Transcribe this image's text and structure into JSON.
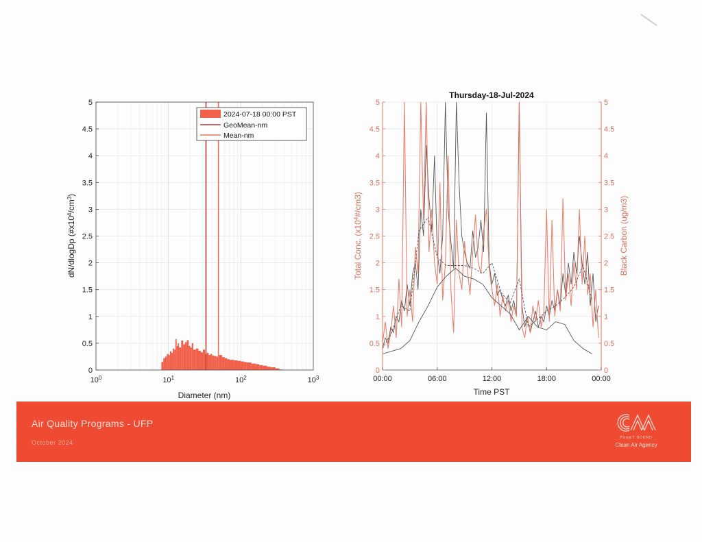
{
  "banner": {
    "title": "Air Quality Programs - UFP",
    "subtitle": "October 2024",
    "logo_text": "CAA",
    "logo_small": "PUGET SOUND",
    "logo_name": "Clean Air Agency",
    "color": "#ef4a32"
  },
  "chart_data": [
    {
      "type": "bar",
      "title": "",
      "xlabel": "Diameter (nm)",
      "ylabel": "dN/dlogDp (#x10^4/cm^3)",
      "xscale": "log",
      "xlim": [
        1,
        1000
      ],
      "ylim": [
        0,
        5
      ],
      "xticks": [
        "10^0",
        "10^1",
        "10^2",
        "10^3"
      ],
      "yticks": [
        "0",
        "0.5",
        "1",
        "1.5",
        "2",
        "2.5",
        "3",
        "3.5",
        "4",
        "4.5",
        "5"
      ],
      "grid": true,
      "legend_position": "upper right",
      "legend": [
        "2024-07-18 00:00 PST",
        "GeoMean-nm",
        "Mean-nm"
      ],
      "series": [
        {
          "name": "2024-07-18 00:00 PST",
          "type": "bar",
          "color": "#f0604a",
          "diameter_nm": [
            8.0,
            8.5,
            9.0,
            9.5,
            10,
            10.5,
            11,
            11.5,
            12,
            12.5,
            13,
            13.5,
            14,
            15,
            16,
            17,
            18,
            19,
            20,
            21,
            22,
            24,
            26,
            28,
            30,
            32,
            34,
            36,
            38,
            40,
            43,
            46,
            50,
            55,
            60,
            65,
            70,
            80,
            90,
            100,
            110,
            120,
            140,
            160,
            180,
            200,
            230,
            260,
            300,
            340
          ],
          "values": [
            0.15,
            0.22,
            0.25,
            0.3,
            0.28,
            0.35,
            0.32,
            0.4,
            0.38,
            0.58,
            0.45,
            0.5,
            0.42,
            0.55,
            0.48,
            0.52,
            0.56,
            0.45,
            0.42,
            0.5,
            0.38,
            0.4,
            0.36,
            0.33,
            0.38,
            0.3,
            0.32,
            0.28,
            0.3,
            0.27,
            0.26,
            0.25,
            0.28,
            0.24,
            0.22,
            0.2,
            0.19,
            0.18,
            0.17,
            0.16,
            0.15,
            0.14,
            0.12,
            0.11,
            0.09,
            0.08,
            0.06,
            0.05,
            0.03,
            0.01
          ]
        },
        {
          "name": "GeoMean-nm",
          "type": "vline",
          "x": 33,
          "color": "#c0392b"
        },
        {
          "name": "Mean-nm",
          "type": "vline",
          "x": 49,
          "color": "#e8735f"
        }
      ]
    },
    {
      "type": "line",
      "title": "Thursday-18-Jul-2024",
      "xlabel": "Time PST",
      "ylabel_left": "Total Conc. (x10^4#/cm3)",
      "ylabel_right": "Black Carbon (ug/m3)",
      "xticks": [
        "00:00",
        "06:00",
        "12:00",
        "18:00",
        "00:00"
      ],
      "yticks_left": [
        "0",
        "0.5",
        "1",
        "1.5",
        "2",
        "2.5",
        "3",
        "3.5",
        "4",
        "4.5",
        "5"
      ],
      "yticks_right": [
        "0",
        "0.5",
        "1",
        "1.5",
        "2",
        "2.5",
        "3",
        "3.5",
        "4",
        "4.5",
        "5"
      ],
      "ylim_left": [
        0,
        5
      ],
      "ylim_right": [
        0,
        5
      ],
      "xlim_hours": [
        0,
        24
      ],
      "grid": true,
      "series": [
        {
          "name": "Total Conc. (raw)",
          "axis": "left",
          "color": "#555555",
          "hours": [
            0,
            0.3,
            0.6,
            0.9,
            1.2,
            1.5,
            1.8,
            2.1,
            2.4,
            2.7,
            3.0,
            3.3,
            3.6,
            3.9,
            4.2,
            4.5,
            4.8,
            5.1,
            5.4,
            5.7,
            6.0,
            6.3,
            6.6,
            6.9,
            7.2,
            7.5,
            7.8,
            8.1,
            8.4,
            8.7,
            9.0,
            9.3,
            9.6,
            9.9,
            10.2,
            10.5,
            10.8,
            11.1,
            11.4,
            11.7,
            12.0,
            12.3,
            12.6,
            12.9,
            13.2,
            13.5,
            13.8,
            14.1,
            14.4,
            14.7,
            15.0,
            15.3,
            15.6,
            15.9,
            16.2,
            16.5,
            16.8,
            17.1,
            17.4,
            17.7,
            18.0,
            18.3,
            18.6,
            18.9,
            19.2,
            19.5,
            19.8,
            20.1,
            20.4,
            20.7,
            21.0,
            21.3,
            21.6,
            21.9,
            22.2,
            22.5,
            22.8,
            23.1,
            23.4,
            23.7
          ],
          "values": [
            0.4,
            0.6,
            0.5,
            0.8,
            0.7,
            1.0,
            0.9,
            1.3,
            1.1,
            1.6,
            1.2,
            1.8,
            2.0,
            1.5,
            3.0,
            2.5,
            4.2,
            3.2,
            2.6,
            4.0,
            2.2,
            1.8,
            2.5,
            5.0,
            3.0,
            2.4,
            1.9,
            5.0,
            3.5,
            2.5,
            2.2,
            2.0,
            1.9,
            2.6,
            2.1,
            2.3,
            2.8,
            2.2,
            4.8,
            2.0,
            1.6,
            1.8,
            1.4,
            1.5,
            1.3,
            1.2,
            1.4,
            1.1,
            1.3,
            1.0,
            5.0,
            1.2,
            0.8,
            1.0,
            0.7,
            0.9,
            1.1,
            0.8,
            1.0,
            0.9,
            1.2,
            1.0,
            1.3,
            1.1,
            1.5,
            1.2,
            1.8,
            1.4,
            2.0,
            1.6,
            2.2,
            1.8,
            2.5,
            2.0,
            1.6,
            2.2,
            1.2,
            1.8,
            0.9,
            1.2
          ]
        },
        {
          "name": "Black Carbon",
          "axis": "right",
          "color": "#e8735f",
          "hours": [
            0,
            0.3,
            0.6,
            0.9,
            1.2,
            1.5,
            1.8,
            2.1,
            2.4,
            2.7,
            3.0,
            3.3,
            3.6,
            3.9,
            4.2,
            4.5,
            4.8,
            5.1,
            5.4,
            5.7,
            6.0,
            6.3,
            6.6,
            6.9,
            7.2,
            7.5,
            7.8,
            8.1,
            8.4,
            8.7,
            9.0,
            9.3,
            9.6,
            9.9,
            10.2,
            10.5,
            10.8,
            11.1,
            11.4,
            11.7,
            12.0,
            12.3,
            12.6,
            12.9,
            13.2,
            13.5,
            13.8,
            14.1,
            14.4,
            14.7,
            15.0,
            15.3,
            15.6,
            15.9,
            16.2,
            16.5,
            16.8,
            17.1,
            17.4,
            17.7,
            18.0,
            18.3,
            18.6,
            18.9,
            19.2,
            19.5,
            19.8,
            20.1,
            20.4,
            20.7,
            21.0,
            21.3,
            21.6,
            21.9,
            22.2,
            22.5,
            22.8,
            23.1,
            23.4,
            23.7
          ],
          "values": [
            0.5,
            0.9,
            0.4,
            0.7,
            1.2,
            0.6,
            1.7,
            0.8,
            5.0,
            1.0,
            1.5,
            0.9,
            2.3,
            1.8,
            5.0,
            2.8,
            5.0,
            2.2,
            3.0,
            2.0,
            1.6,
            3.5,
            1.3,
            2.0,
            4.0,
            1.5,
            0.7,
            2.8,
            1.8,
            1.5,
            2.4,
            1.9,
            1.4,
            2.2,
            2.9,
            2.0,
            1.8,
            2.6,
            3.0,
            1.9,
            1.5,
            1.2,
            1.6,
            1.0,
            1.4,
            1.1,
            1.3,
            0.9,
            1.2,
            1.0,
            5.0,
            0.8,
            0.6,
            1.0,
            0.7,
            1.2,
            0.9,
            1.3,
            0.8,
            1.1,
            3.0,
            0.9,
            2.8,
            1.0,
            1.5,
            1.1,
            3.2,
            1.3,
            1.8,
            1.2,
            2.0,
            1.5,
            3.0,
            1.6,
            2.5,
            1.4,
            1.8,
            0.8,
            1.5,
            0.6
          ]
        },
        {
          "name": "Total Conc. (hourly mean, dashed)",
          "axis": "left",
          "color": "#555555",
          "style": "dashed",
          "hours": [
            0,
            1,
            2,
            3,
            4,
            5,
            6,
            7,
            8,
            9,
            10,
            11,
            12,
            13,
            14,
            15,
            16,
            17,
            18,
            19,
            20,
            21,
            22,
            23
          ],
          "values": [
            0.4,
            0.7,
            1.2,
            1.1,
            2.6,
            2.85,
            2.1,
            1.95,
            1.95,
            1.95,
            1.9,
            1.8,
            2.0,
            1.45,
            1.25,
            1.7,
            0.8,
            0.95,
            1.1,
            1.2,
            1.35,
            1.55,
            1.95,
            1.3
          ]
        },
        {
          "name": "Black Carbon (hourly mean)",
          "axis": "right",
          "color": "#555555",
          "style": "solid",
          "hours": [
            0,
            1,
            2,
            3,
            4,
            5,
            6,
            7,
            8,
            9,
            10,
            11,
            12,
            13,
            14,
            15,
            16,
            17,
            18,
            19,
            20,
            21,
            22,
            23
          ],
          "values": [
            0.3,
            0.35,
            0.4,
            0.55,
            0.9,
            1.2,
            1.55,
            1.75,
            1.9,
            1.75,
            1.7,
            1.6,
            1.35,
            1.2,
            1.05,
            0.75,
            1.0,
            0.8,
            0.75,
            0.9,
            0.85,
            0.55,
            0.4,
            0.3
          ]
        }
      ]
    }
  ]
}
